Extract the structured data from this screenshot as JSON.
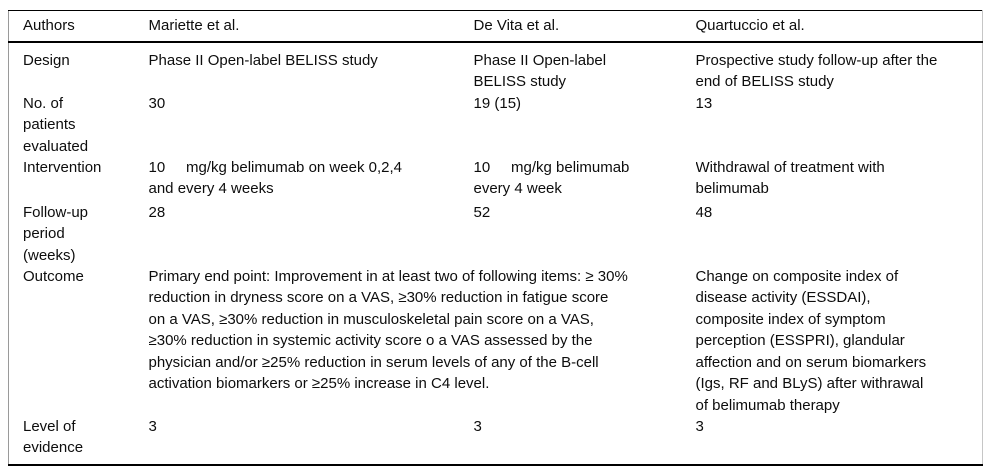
{
  "table": {
    "header": {
      "authors_label": "Authors",
      "mariette": "Mariette et al.",
      "devita": "De Vita et al.",
      "quartuccio": "Quartuccio et al."
    },
    "rows": {
      "design": {
        "label": "Design",
        "mariette": "Phase II Open-label BELISS study",
        "devita": [
          "Phase II Open-label",
          "BELISS study"
        ],
        "quartuccio": [
          "Prospective study follow-up after the",
          "end of BELISS study"
        ]
      },
      "patients": {
        "label": [
          "No. of",
          "patients",
          "evaluated"
        ],
        "mariette": "30",
        "devita": "19 (15)",
        "quartuccio": "13"
      },
      "intervention": {
        "label": "Intervention",
        "mariette": [
          "10     mg/kg belimumab on week 0,2,4",
          "and every 4 weeks"
        ],
        "devita": [
          "10     mg/kg belimumab",
          "every 4 week"
        ],
        "quartuccio": [
          "Withdrawal of treatment with",
          "belimumab"
        ]
      },
      "followup": {
        "label": [
          "Follow-up",
          "period",
          "(weeks)"
        ],
        "mariette": "28",
        "devita": "52",
        "quartuccio": "48"
      },
      "outcome": {
        "label": "Outcome",
        "mariette_devita": [
          "Primary end point: Improvement in at least two of following items: ≥ 30%",
          "reduction in dryness score on a VAS, ≥30% reduction in fatigue score",
          "on a VAS, ≥30% reduction in musculoskeletal pain score on a VAS,",
          "≥30% reduction in systemic activity score o a VAS assessed by the",
          "physician and/or ≥25% reduction in serum levels of any of the B-cell",
          "activation biomarkers or ≥25% increase in C4 level."
        ],
        "quartuccio": [
          "Change on composite index of",
          "disease activity (ESSDAI),",
          "composite index of symptom",
          "perception (ESSPRI), glandular",
          "affection and on serum biomarkers",
          "(Igs, RF and BLyS) after withrawal",
          "of belimumab therapy"
        ]
      },
      "evidence": {
        "label": [
          "Level of",
          "evidence"
        ],
        "mariette": "3",
        "devita": "3",
        "quartuccio": "3"
      }
    }
  }
}
